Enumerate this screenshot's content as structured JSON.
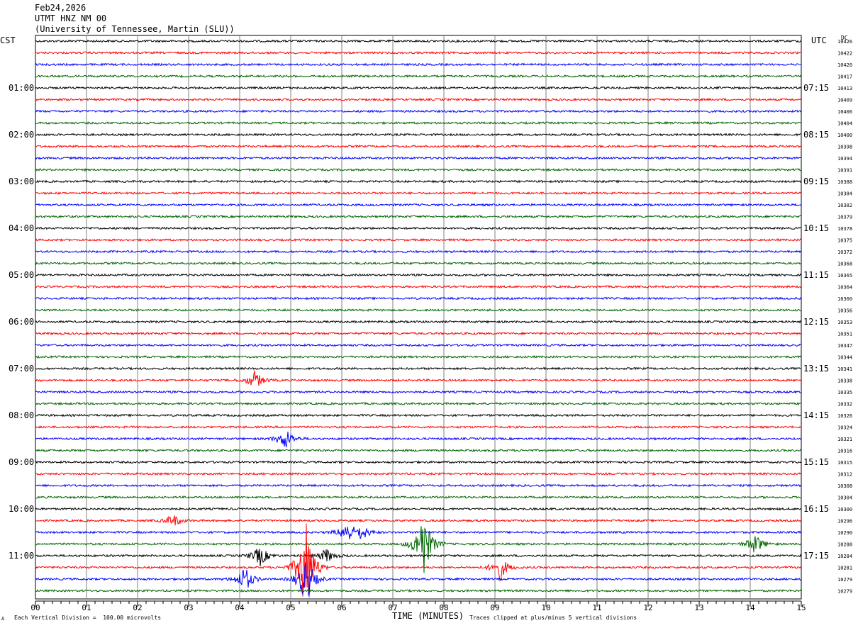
{
  "header": {
    "date": "Feb24,2026",
    "station": "UTMT HNZ NM 00",
    "network": "(University of Tennessee, Martin (SLU))"
  },
  "left_timezone": "CST",
  "right_timezone": "UTC",
  "dc_label": "DC",
  "footer": {
    "mark": "A",
    "scale": "Each Vertical Division =  100.00 microvolts",
    "xlabel": "TIME (MINUTES)",
    "clip_note": "Traces clipped at plus/minus 5 vertical divisions"
  },
  "colors": {
    "trace_cycle": [
      "#000000",
      "#ff0000",
      "#0000ff",
      "#006400"
    ],
    "grid": "#808080"
  },
  "chart_data": {
    "type": "line",
    "xlabel": "TIME (MINUTES)",
    "xlim": [
      0,
      15
    ],
    "x_ticks": [
      "00",
      "01",
      "02",
      "03",
      "04",
      "05",
      "06",
      "07",
      "08",
      "09",
      "10",
      "11",
      "12",
      "13",
      "14",
      "15"
    ],
    "left_hour_labels": [
      "01:00",
      "02:00",
      "03:00",
      "04:00",
      "05:00",
      "06:00",
      "07:00",
      "08:00",
      "09:00",
      "10:00",
      "11:00"
    ],
    "right_hour_labels": [
      "07:15",
      "08:15",
      "09:15",
      "10:15",
      "11:15",
      "12:15",
      "13:15",
      "14:15",
      "15:15",
      "16:15",
      "17:15"
    ],
    "trace_count": 48,
    "dc_values": [
      "10426",
      "10422",
      "10420",
      "10417",
      "10413",
      "10409",
      "10406",
      "10404",
      "10400",
      "10398",
      "10394",
      "10391",
      "10388",
      "10384",
      "10382",
      "10379",
      "10378",
      "10375",
      "10372",
      "10368",
      "10365",
      "10364",
      "10360",
      "10356",
      "10353",
      "10351",
      "10347",
      "10344",
      "10341",
      "10338",
      "10335",
      "10332",
      "10326",
      "10324",
      "10321",
      "10316",
      "10315",
      "10312",
      "10308",
      "10304",
      "10300",
      "10296",
      "10290",
      "10288",
      "10284",
      "10281",
      "10279",
      "10279"
    ],
    "events": [
      {
        "trace": 29,
        "minute": 4.3,
        "amplitude": 0.9
      },
      {
        "trace": 34,
        "minute": 4.9,
        "amplitude": 1.0
      },
      {
        "trace": 41,
        "minute": 2.7,
        "amplitude": 0.6
      },
      {
        "trace": 42,
        "minute": 6.1,
        "amplitude": 1.0
      },
      {
        "trace": 42,
        "minute": 6.4,
        "amplitude": 0.7
      },
      {
        "trace": 43,
        "minute": 7.6,
        "amplitude": 3.5
      },
      {
        "trace": 43,
        "minute": 14.1,
        "amplitude": 1.0
      },
      {
        "trace": 44,
        "minute": 4.4,
        "amplitude": 1.0
      },
      {
        "trace": 44,
        "minute": 5.7,
        "amplitude": 0.7
      },
      {
        "trace": 45,
        "minute": 5.3,
        "amplitude": 5.0
      },
      {
        "trace": 45,
        "minute": 9.1,
        "amplitude": 1.2
      },
      {
        "trace": 46,
        "minute": 4.1,
        "amplitude": 1.3
      },
      {
        "trace": 46,
        "minute": 5.3,
        "amplitude": 2.5
      }
    ]
  }
}
